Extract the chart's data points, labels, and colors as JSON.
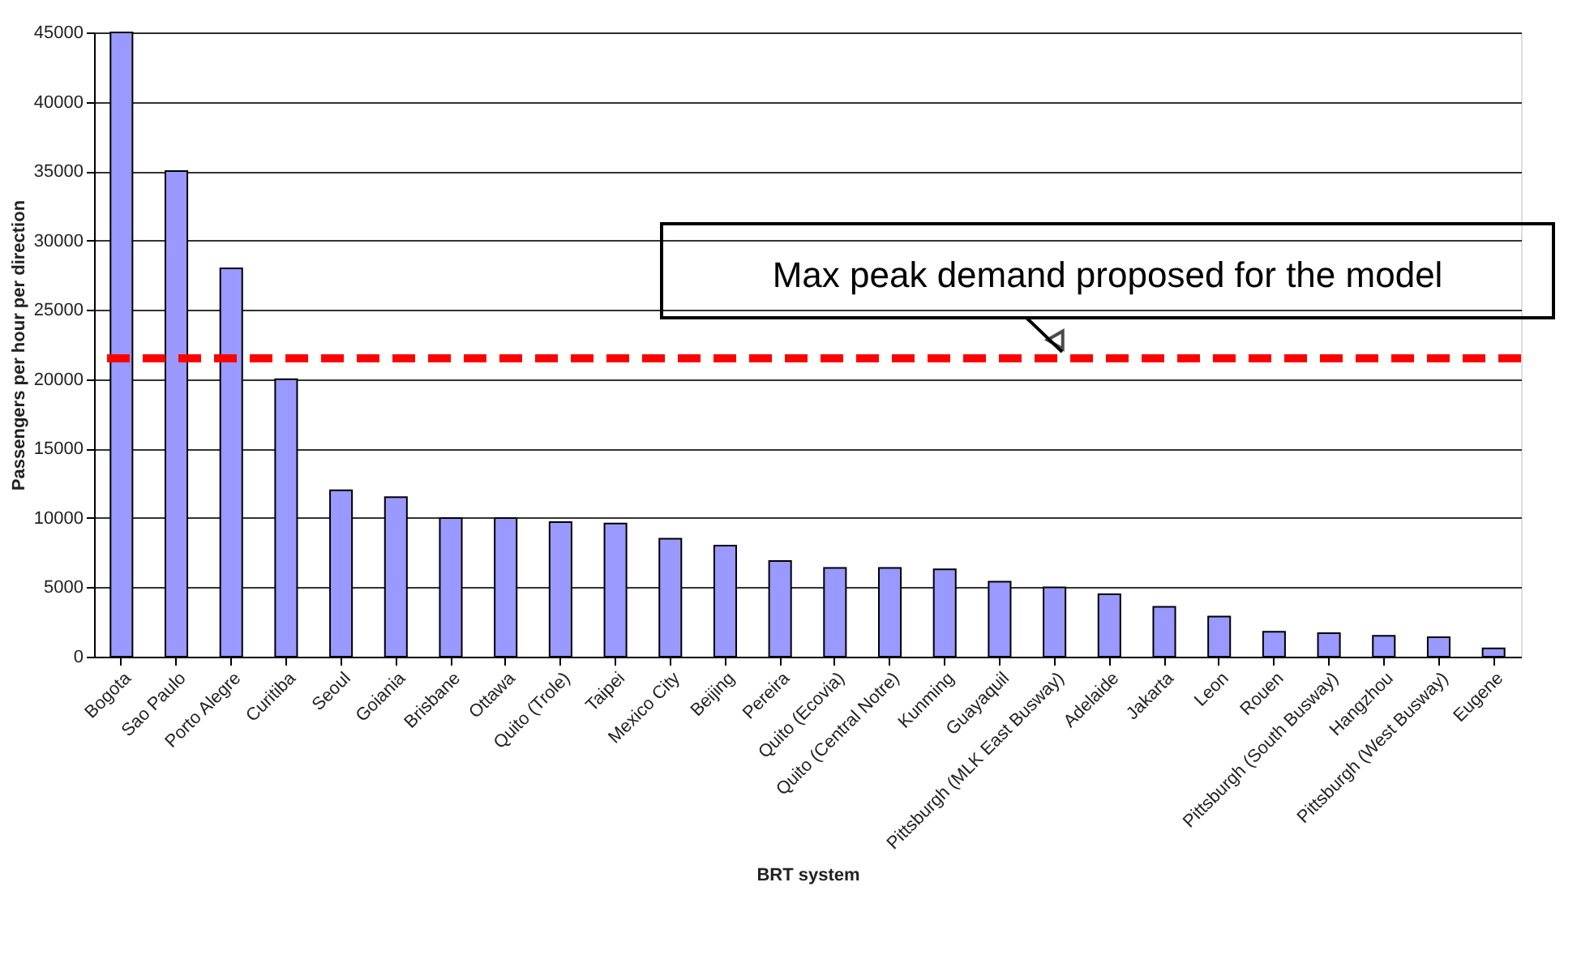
{
  "chart_data": {
    "type": "bar",
    "xlabel": "BRT system",
    "ylabel": "Passengers per hour per direction",
    "categories": [
      "Bogota",
      "Sao Paulo",
      "Porto Alegre",
      "Curitiba",
      "Seoul",
      "Goiania",
      "Brisbane",
      "Ottawa",
      "Quito (Trole)",
      "Taipei",
      "Mexico City",
      "Beijing",
      "Pereira",
      "Quito (Ecovia)",
      "Quito (Central Notre)",
      "Kunming",
      "Guayaquil",
      "Pittsburgh (MLK East Busway)",
      "Adelaide",
      "Jakarta",
      "Leon",
      "Rouen",
      "Pittsburgh (South Busway)",
      "Hangzhou",
      "Pittsburgh (West Busway)",
      "Eugene"
    ],
    "values": [
      45000,
      35000,
      28000,
      20000,
      12000,
      11500,
      10000,
      10000,
      9700,
      9600,
      8500,
      8000,
      6900,
      6400,
      6400,
      6300,
      5400,
      5000,
      4500,
      3600,
      2900,
      1800,
      1700,
      1500,
      1400,
      600
    ],
    "color": "#9999ff",
    "ylim": [
      0,
      45000
    ],
    "yticks": [
      0,
      5000,
      10000,
      15000,
      20000,
      25000,
      30000,
      35000,
      40000,
      45000
    ],
    "grid": "y",
    "ref_lines": [
      {
        "axis": "y",
        "value": 21500,
        "label": "Max peak demand proposed for the model",
        "color": "#ff0000",
        "line_style": "dashed"
      }
    ]
  }
}
